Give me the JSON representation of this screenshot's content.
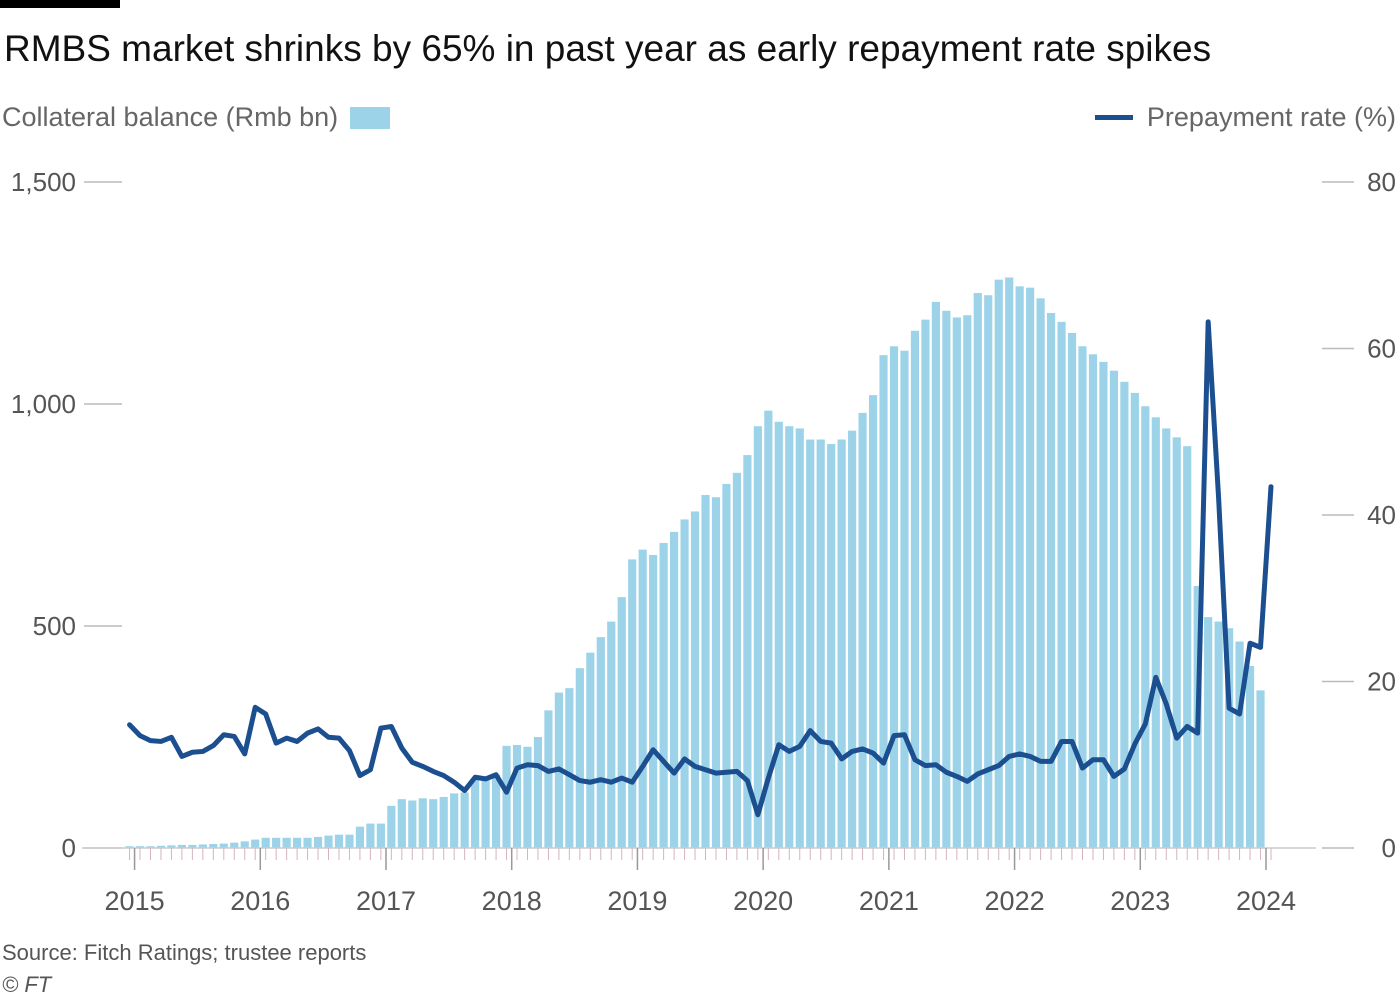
{
  "chart_data": {
    "type": "bar",
    "title": "RMBS market shrinks by 65% in past year as early repayment rate spikes",
    "source": "Source: Fitch Ratings; trustee reports",
    "copyright": "© FT",
    "colors": {
      "bar": "#9dd3e8",
      "line": "#1b4f8f",
      "axis_text": "#555555",
      "tick": "#bbbbbb"
    },
    "left_axis": {
      "label": "Collateral balance (Rmb bn)",
      "range": [
        0,
        1500
      ],
      "ticks": [
        0,
        500,
        1000,
        1500
      ],
      "tick_labels": [
        "0",
        "500",
        "1,000",
        "1,500"
      ]
    },
    "right_axis": {
      "label": "Prepayment rate (%)",
      "range": [
        0,
        80
      ],
      "ticks": [
        0,
        20,
        40,
        60,
        80
      ],
      "tick_labels": [
        "0",
        "20",
        "40",
        "60",
        "80"
      ]
    },
    "x_axis": {
      "start": 2014.9,
      "end": 2024.35,
      "year_labels": [
        "2015",
        "2016",
        "2017",
        "2018",
        "2019",
        "2020",
        "2021",
        "2022",
        "2023",
        "2024"
      ],
      "year_positions": [
        2015,
        2016,
        2017,
        2018,
        2019,
        2020,
        2021,
        2022,
        2023,
        2024
      ]
    },
    "series": [
      {
        "name": "Collateral balance (Rmb bn)",
        "kind": "bar",
        "axis": "left",
        "start": 2014.96,
        "step": 0.0833,
        "values": [
          4,
          4,
          4,
          5,
          6,
          7,
          7,
          8,
          9,
          10,
          12,
          15,
          19,
          23,
          23,
          23,
          23,
          23,
          25,
          28,
          30,
          30,
          48,
          55,
          55,
          95,
          110,
          107,
          112,
          110,
          115,
          123,
          125,
          155,
          160,
          165,
          230,
          232,
          228,
          250,
          310,
          350,
          360,
          405,
          440,
          475,
          510,
          565,
          650,
          672,
          660,
          687,
          712,
          740,
          758,
          795,
          790,
          820,
          845,
          885,
          950,
          985,
          960,
          950,
          945,
          920,
          920,
          910,
          920,
          940,
          980,
          1020,
          1110,
          1130,
          1120,
          1165,
          1190,
          1230,
          1210,
          1195,
          1200,
          1250,
          1245,
          1280,
          1285,
          1265,
          1262,
          1238,
          1205,
          1185,
          1160,
          1130,
          1112,
          1095,
          1075,
          1050,
          1025,
          995,
          970,
          945,
          925,
          905,
          590,
          520,
          510,
          495,
          465,
          410,
          355
        ]
      },
      {
        "name": "Prepayment rate (%)",
        "kind": "line",
        "axis": "right",
        "start": 2014.96,
        "step": 0.0833,
        "values": [
          14.8,
          13.5,
          12.9,
          12.8,
          13.3,
          11.0,
          11.5,
          11.6,
          12.3,
          13.6,
          13.4,
          11.3,
          16.9,
          16.1,
          12.6,
          13.2,
          12.8,
          13.8,
          14.3,
          13.3,
          13.2,
          11.7,
          8.7,
          9.4,
          14.4,
          14.6,
          12.0,
          10.3,
          9.8,
          9.2,
          8.7,
          7.9,
          6.9,
          8.5,
          8.3,
          8.8,
          6.7,
          9.6,
          10.0,
          9.9,
          9.2,
          9.5,
          8.8,
          8.1,
          7.9,
          8.2,
          7.9,
          8.4,
          7.9,
          9.8,
          11.8,
          10.4,
          9.0,
          10.7,
          9.8,
          9.4,
          9.0,
          9.1,
          9.2,
          8.1,
          4.0,
          8.4,
          12.4,
          11.6,
          12.2,
          14.1,
          12.8,
          12.6,
          10.7,
          11.6,
          11.9,
          11.4,
          10.2,
          13.5,
          13.6,
          10.6,
          9.9,
          10.0,
          9.1,
          8.6,
          8.0,
          8.9,
          9.4,
          9.9,
          11.0,
          11.3,
          11.0,
          10.4,
          10.4,
          12.8,
          12.8,
          9.6,
          10.6,
          10.6,
          8.6,
          9.5,
          12.5,
          14.9,
          20.5,
          17.3,
          13.2,
          14.6,
          13.8,
          63.2,
          42.0,
          16.8,
          16.1,
          24.6,
          24.1,
          43.4
        ]
      }
    ]
  }
}
